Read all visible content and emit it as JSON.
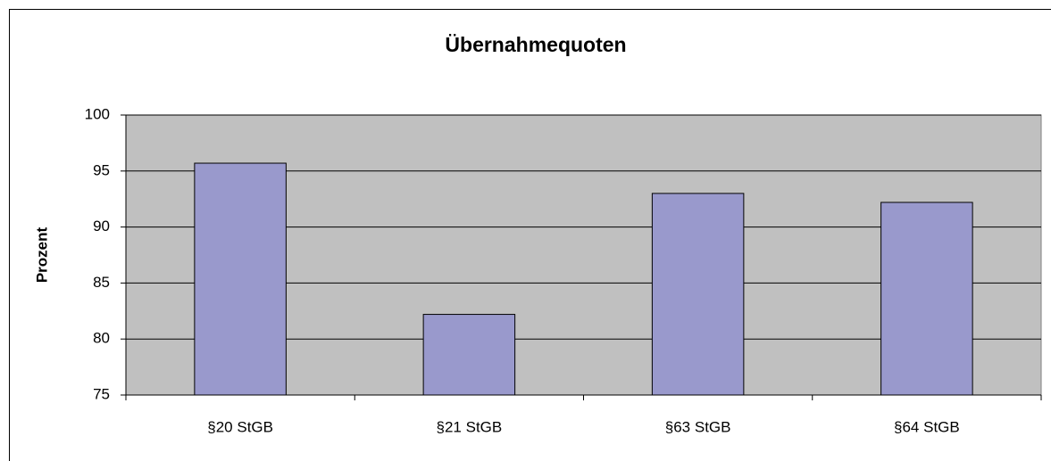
{
  "chart_data": {
    "type": "bar",
    "title": "Übernahmequoten",
    "y_label": "Prozent",
    "categories": [
      "§20 StGB",
      "§21 StGB",
      "§63 StGB",
      "§64 StGB"
    ],
    "values": [
      95.7,
      82.2,
      93.0,
      92.2
    ],
    "color": "#9999cc",
    "ylim": [
      75,
      100
    ],
    "yticks": [
      75,
      80,
      85,
      90,
      95,
      100
    ],
    "grid": true
  }
}
